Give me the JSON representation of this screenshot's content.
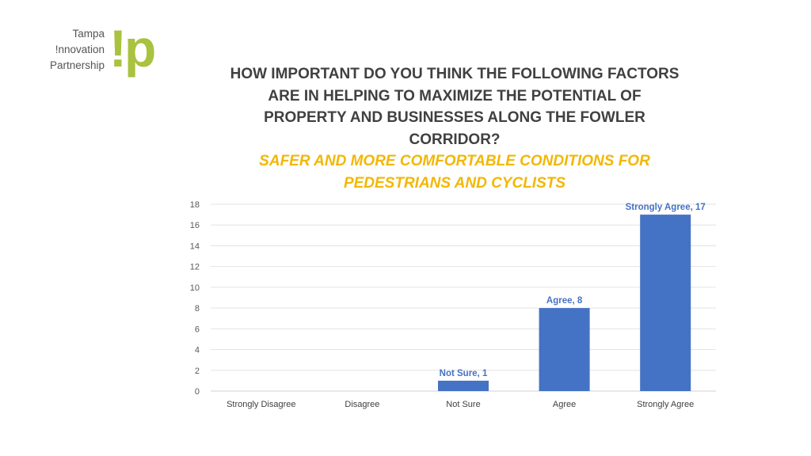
{
  "logo": {
    "line1": "Tampa",
    "line2": "!nnovation",
    "line3": "Partnership",
    "mark": "!p",
    "mark_color": "#a9c23f"
  },
  "title": "HOW IMPORTANT DO YOU THINK THE FOLLOWING FACTORS ARE IN HELPING TO MAXIMIZE THE POTENTIAL OF PROPERTY AND BUSINESSES ALONG THE FOWLER CORRIDOR?",
  "subtitle": "SAFER AND MORE COMFORTABLE CONDITIONS FOR PEDESTRIANS AND CYCLISTS",
  "chart_data": {
    "type": "bar",
    "categories": [
      "Strongly Disagree",
      "Disagree",
      "Not Sure",
      "Agree",
      "Strongly Agree"
    ],
    "values": [
      0,
      0,
      1,
      8,
      17
    ],
    "data_labels": [
      "",
      "",
      "Not Sure, 1",
      "Agree, 8",
      "Strongly Agree, 17"
    ],
    "ylim": [
      0,
      18
    ],
    "yticks": [
      0,
      2,
      4,
      6,
      8,
      10,
      12,
      14,
      16,
      18
    ],
    "grid": true,
    "bar_color": "#4472c4",
    "xlabel": "",
    "ylabel": ""
  }
}
